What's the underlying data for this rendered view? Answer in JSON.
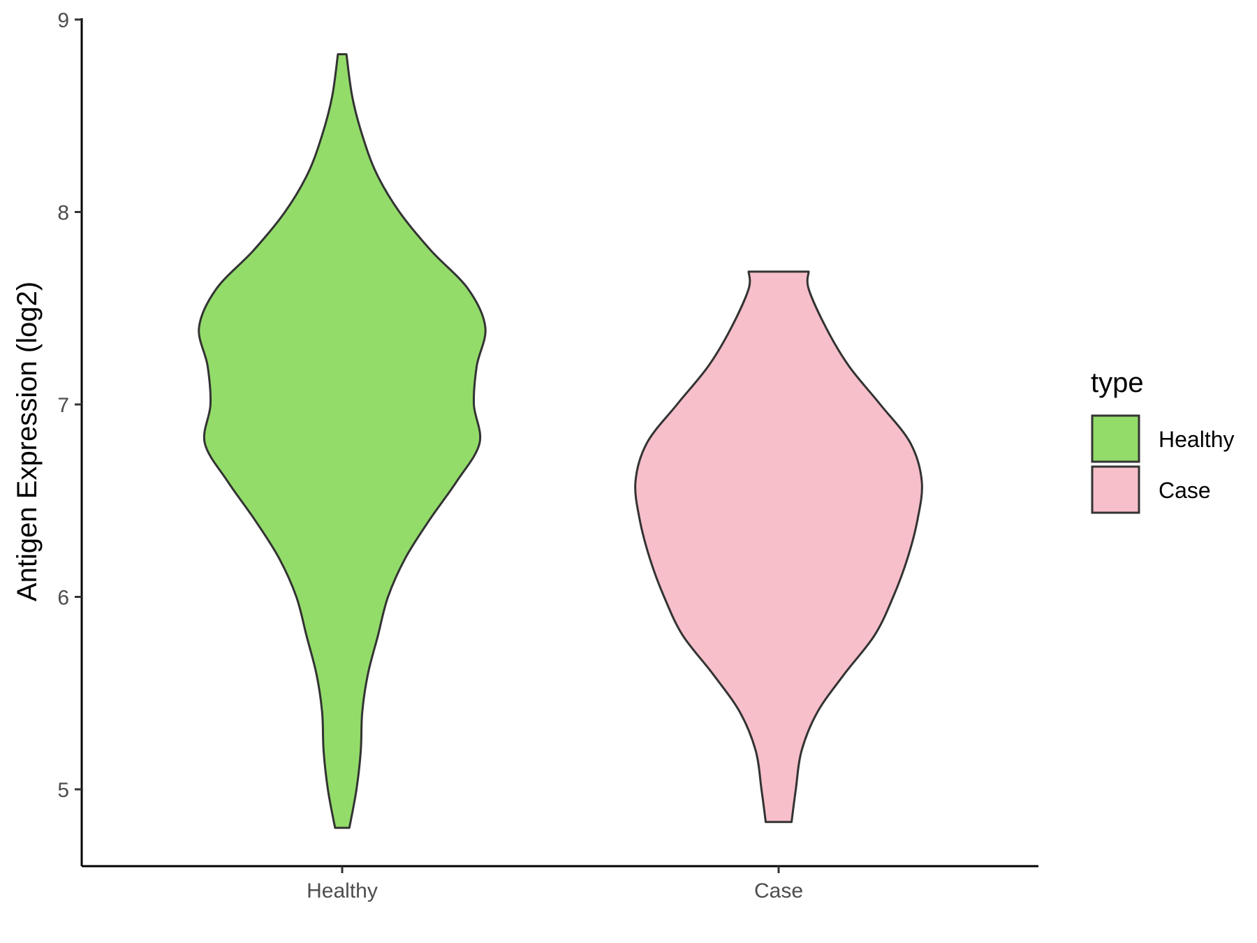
{
  "chart_data": {
    "type": "violin",
    "title": "",
    "xlabel": "",
    "ylabel": "Antigen Expression (log2)",
    "ylim": [
      4.6,
      9.0
    ],
    "yticks": [
      5,
      6,
      7,
      8,
      9
    ],
    "categories": [
      "Healthy",
      "Case"
    ],
    "grid": false,
    "legend": {
      "title": "type",
      "position": "right",
      "entries": [
        {
          "label": "Healthy",
          "color": "#93dc6a"
        },
        {
          "label": "Case",
          "color": "#f7bfca"
        }
      ]
    },
    "series": [
      {
        "name": "Healthy",
        "color": "#93dc6a",
        "min": 4.8,
        "max": 8.82,
        "density": [
          [
            4.8,
            0.05
          ],
          [
            5.0,
            0.1
          ],
          [
            5.2,
            0.13
          ],
          [
            5.4,
            0.14
          ],
          [
            5.6,
            0.18
          ],
          [
            5.8,
            0.25
          ],
          [
            6.0,
            0.32
          ],
          [
            6.2,
            0.44
          ],
          [
            6.4,
            0.61
          ],
          [
            6.6,
            0.8
          ],
          [
            6.8,
            0.96
          ],
          [
            7.0,
            0.92
          ],
          [
            7.2,
            0.94
          ],
          [
            7.4,
            1.0
          ],
          [
            7.6,
            0.88
          ],
          [
            7.8,
            0.62
          ],
          [
            8.0,
            0.4
          ],
          [
            8.2,
            0.24
          ],
          [
            8.4,
            0.14
          ],
          [
            8.6,
            0.07
          ],
          [
            8.82,
            0.03
          ]
        ]
      },
      {
        "name": "Case",
        "color": "#f7bfca",
        "min": 4.83,
        "max": 7.69,
        "density": [
          [
            4.83,
            0.09
          ],
          [
            5.0,
            0.12
          ],
          [
            5.2,
            0.16
          ],
          [
            5.4,
            0.27
          ],
          [
            5.6,
            0.46
          ],
          [
            5.8,
            0.67
          ],
          [
            6.0,
            0.8
          ],
          [
            6.2,
            0.9
          ],
          [
            6.4,
            0.97
          ],
          [
            6.6,
            1.0
          ],
          [
            6.8,
            0.92
          ],
          [
            7.0,
            0.71
          ],
          [
            7.2,
            0.49
          ],
          [
            7.4,
            0.33
          ],
          [
            7.6,
            0.21
          ],
          [
            7.69,
            0.21
          ]
        ]
      }
    ]
  }
}
